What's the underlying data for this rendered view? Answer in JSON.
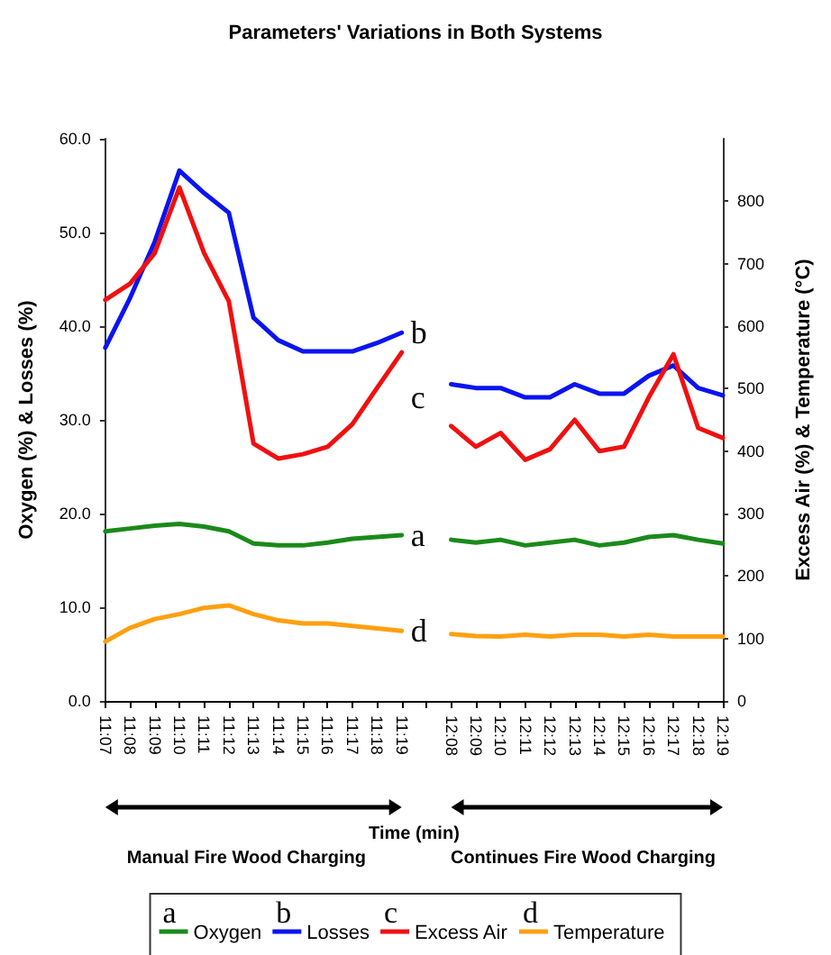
{
  "chart_data": {
    "type": "line",
    "title": "Parameters' Variations in Both Systems",
    "xlabel": "Time (min)",
    "ylabel": "Oxygen (%) & Losses (%)",
    "y2label": "Excess Air (%) & Temperature (°C)",
    "categories": [
      "11:07",
      "11:08",
      "11:09",
      "11:10",
      "11:11",
      "11:12",
      "11:13",
      "11:14",
      "11:15",
      "11:16",
      "11:17",
      "11:18",
      "11:19",
      null,
      "12:08",
      "12:09",
      "12:10",
      "12:11",
      "12:12",
      "12:13",
      "12:14",
      "12:15",
      "12:16",
      "12:17",
      "12:18",
      "12:19"
    ],
    "series": [
      {
        "name": "Oxygen",
        "color": "#1a8a1a",
        "values": [
          18.1,
          18.4,
          18.7,
          18.9,
          18.6,
          18.1,
          16.8,
          16.6,
          16.6,
          16.9,
          17.3,
          17.5,
          17.7,
          null,
          17.2,
          16.9,
          17.2,
          16.6,
          16.9,
          17.2,
          16.6,
          16.9,
          17.5,
          17.7,
          17.2,
          16.8
        ]
      },
      {
        "name": "Losses",
        "color": "#0a14f0",
        "values": [
          37.7,
          43.0,
          49.0,
          56.6,
          54.2,
          52.1,
          40.9,
          38.5,
          37.3,
          37.3,
          37.3,
          38.2,
          39.3,
          null,
          33.8,
          33.4,
          33.4,
          32.4,
          32.4,
          33.8,
          32.8,
          32.8,
          34.7,
          35.8,
          33.4,
          32.6
        ]
      },
      {
        "name": "Excess Air",
        "color": "#f01010",
        "axis": "y2",
        "values": [
          642,
          668,
          717,
          822,
          717,
          640,
          412,
          388,
          395,
          407,
          443,
          501,
          558,
          null,
          440,
          407,
          429,
          386,
          403,
          450,
          400,
          407,
          486,
          555,
          437,
          421
        ]
      },
      {
        "name": "Temperature",
        "color": "#ffa010",
        "axis": "y2",
        "values": [
          95,
          117,
          131,
          139,
          149,
          153,
          139,
          129,
          124,
          124,
          120,
          116,
          112,
          null,
          107,
          104,
          103,
          106,
          103,
          106,
          106,
          103,
          106,
          103,
          103,
          103
        ]
      }
    ],
    "ylim": [
      0,
      60
    ],
    "yticks": [
      {
        "value": 0,
        "label": "0.0"
      },
      {
        "value": 10,
        "label": "10.0"
      },
      {
        "value": 20,
        "label": "20.0"
      },
      {
        "value": 30,
        "label": "30.0"
      },
      {
        "value": 40,
        "label": "40.0"
      },
      {
        "value": 50,
        "label": "50.0"
      },
      {
        "value": 60,
        "label": "60.0"
      }
    ],
    "y2lim": [
      0,
      900
    ],
    "y2ticks": [
      0,
      100,
      200,
      300,
      400,
      500,
      600,
      700,
      800
    ],
    "annotations": [
      "a",
      "b",
      "c",
      "d",
      "Manual Fire Wood Charging",
      "Continues Fire Wood Charging"
    ],
    "grid": false,
    "legend": "bottom",
    "marker": "none",
    "line_style": "solid"
  }
}
